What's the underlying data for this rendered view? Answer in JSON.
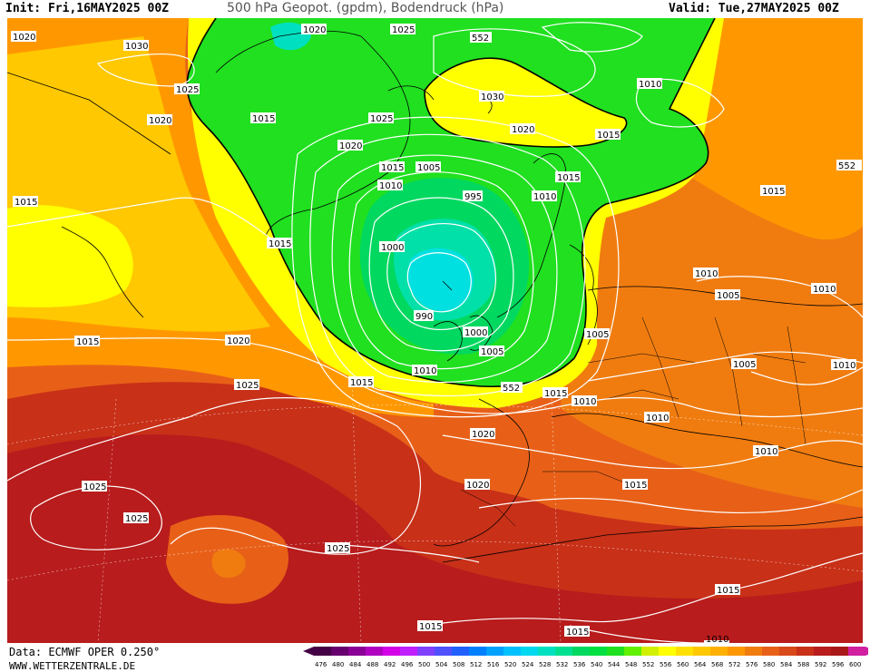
{
  "header": {
    "init": "Init: Fri,16MAY2025 00Z",
    "title": "500 hPa Geopot. (gpdm), Bodendruck (hPa)",
    "valid": "Valid: Tue,27MAY2025 00Z"
  },
  "footer": {
    "source": "Data: ECMWF OPER 0.250°",
    "website": "WWW.WETTERZENTRALE.DE"
  },
  "legend": {
    "ticks": [
      "476",
      "480",
      "484",
      "488",
      "492",
      "496",
      "500",
      "504",
      "508",
      "512",
      "516",
      "520",
      "524",
      "528",
      "532",
      "536",
      "540",
      "544",
      "548",
      "552",
      "556",
      "560",
      "564",
      "568",
      "572",
      "576",
      "580",
      "584",
      "588",
      "592",
      "596",
      "600"
    ],
    "colors": [
      "#440044",
      "#66006e",
      "#8a0096",
      "#b000c0",
      "#d400e8",
      "#c020ff",
      "#8040ff",
      "#5050ff",
      "#2060ff",
      "#0080ff",
      "#00a0ff",
      "#00c0ff",
      "#00d8f0",
      "#00e0c0",
      "#00e090",
      "#00d860",
      "#00e040",
      "#20e020",
      "#60f000",
      "#d0f000",
      "#ffff00",
      "#ffe000",
      "#ffc800",
      "#ffb000",
      "#ff9800",
      "#f07c10",
      "#e86018",
      "#d84818",
      "#c83018",
      "#b81c1c",
      "#a81818",
      "#d020a0"
    ]
  },
  "map": {
    "heights": [
      "552",
      "552"
    ],
    "isobars": [
      "1020",
      "1030",
      "1025",
      "1020",
      "1015",
      "1025",
      "1025",
      "1020",
      "1020",
      "1015",
      "1015",
      "1010",
      "1005",
      "1015",
      "1010",
      "995",
      "1000",
      "990",
      "1000",
      "1005",
      "1010",
      "1015",
      "552",
      "1015",
      "1010",
      "1010",
      "1020",
      "1025",
      "1020",
      "1025",
      "1025",
      "1015",
      "1020",
      "1025",
      "1030",
      "1020",
      "1010",
      "1015",
      "1015",
      "1015",
      "1010",
      "1010",
      "1005",
      "1005",
      "1005",
      "1010",
      "1010",
      "1015",
      "1015",
      "1010",
      "1015",
      "1015"
    ]
  }
}
